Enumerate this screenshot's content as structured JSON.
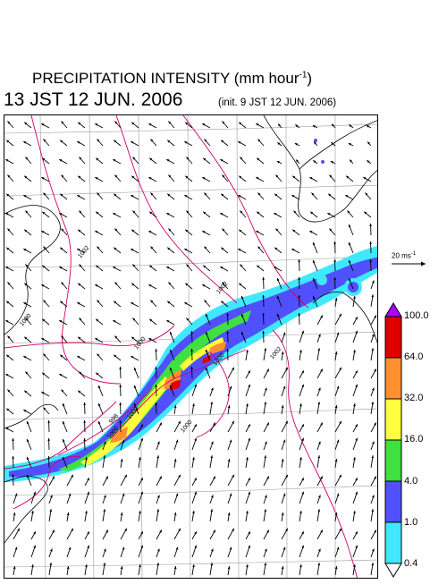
{
  "header": {
    "title_main": "PRECIPITATION INTENSITY (mm hour",
    "title_exp": "-1",
    "title_close": ")",
    "date": "13 JST 12 JUN. 2006",
    "init": "(init. 9 JST 12 JUN. 2006)"
  },
  "wind_scale": {
    "label_main": "20 ms",
    "label_exp": "-1"
  },
  "legend": {
    "labels": [
      "100.0",
      "64.0",
      "32.0",
      "16.0",
      "4.0",
      "1.0",
      "0.4"
    ],
    "colors": {
      "above_max": "#b000ff",
      "band_64_100": "#e00000",
      "band_32_64": "#ff9030",
      "band_16_32": "#ffff40",
      "band_4_16": "#40e040",
      "band_1_4": "#5050ff",
      "band_04_1": "#40e8ff",
      "below_min": "#ffffff"
    }
  },
  "map": {
    "isobar_labels": [
      "1002",
      "1000",
      "1002",
      "1000",
      "1000",
      "1000",
      "998",
      "1000",
      "1002",
      "1000"
    ],
    "colors": {
      "coast": "#000000",
      "grid": "#9a9a9a",
      "isobar": "#d0006a",
      "wind": "#000000"
    }
  }
}
